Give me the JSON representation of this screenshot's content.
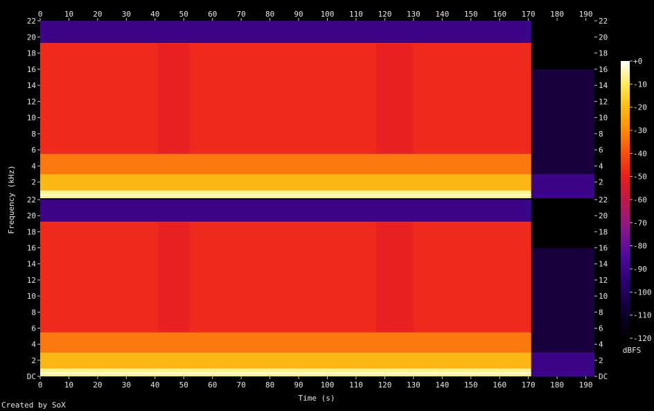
{
  "chart_data": {
    "type": "heatmap",
    "kind": "spectrogram",
    "channels": 2,
    "xlabel": "Time (s)",
    "ylabel": "Frequency (kHz)",
    "xlim": [
      0,
      193
    ],
    "x_ticks": [
      0,
      10,
      20,
      30,
      40,
      50,
      60,
      70,
      80,
      90,
      100,
      110,
      120,
      130,
      140,
      150,
      160,
      170,
      180,
      190
    ],
    "ylim": [
      0,
      22
    ],
    "y_ticks": [
      {
        "value": 0,
        "label": "DC"
      },
      {
        "value": 2,
        "label": "2"
      },
      {
        "value": 4,
        "label": "4"
      },
      {
        "value": 6,
        "label": "6"
      },
      {
        "value": 8,
        "label": "8"
      },
      {
        "value": 10,
        "label": "10"
      },
      {
        "value": 12,
        "label": "12"
      },
      {
        "value": 14,
        "label": "14"
      },
      {
        "value": 16,
        "label": "16"
      },
      {
        "value": 18,
        "label": "18"
      },
      {
        "value": 20,
        "label": "20"
      },
      {
        "value": 22,
        "label": "22"
      }
    ],
    "colorbar": {
      "label": "dBFS",
      "range": [
        -120,
        0
      ],
      "ticks": [
        {
          "value": 0,
          "label": "+0"
        },
        {
          "value": -10,
          "label": "-10"
        },
        {
          "value": -20,
          "label": "-20"
        },
        {
          "value": -30,
          "label": "-30"
        },
        {
          "value": -40,
          "label": "-40"
        },
        {
          "value": -50,
          "label": "-50"
        },
        {
          "value": -60,
          "label": "-60"
        },
        {
          "value": -70,
          "label": "-70"
        },
        {
          "value": -80,
          "label": "-80"
        },
        {
          "value": -90,
          "label": "-90"
        },
        {
          "value": -100,
          "label": "-100"
        },
        {
          "value": -110,
          "label": "-110"
        },
        {
          "value": -120,
          "label": "-120"
        }
      ]
    },
    "spectral_regions": [
      {
        "time": [
          0,
          171
        ],
        "freq_khz": [
          0,
          1
        ],
        "level_dbfs": -8
      },
      {
        "time": [
          0,
          171
        ],
        "freq_khz": [
          1,
          3
        ],
        "level_dbfs": -28
      },
      {
        "time": [
          0,
          171
        ],
        "freq_khz": [
          3,
          5.5
        ],
        "level_dbfs": -40
      },
      {
        "time": [
          0,
          171
        ],
        "freq_khz": [
          5.5,
          19.2
        ],
        "level_dbfs": -55
      },
      {
        "time": [
          0,
          171
        ],
        "freq_khz": [
          19.2,
          22
        ],
        "level_dbfs": -95
      },
      {
        "time": [
          171,
          193
        ],
        "freq_khz": [
          0,
          3
        ],
        "level_dbfs": -95
      },
      {
        "time": [
          171,
          193
        ],
        "freq_khz": [
          3,
          16
        ],
        "level_dbfs": -108
      },
      {
        "time": [
          171,
          193
        ],
        "freq_khz": [
          16,
          22
        ],
        "level_dbfs": -120
      }
    ],
    "quiet_segments_s": [
      [
        41,
        52
      ],
      [
        117,
        130
      ]
    ],
    "lowpass_cutoff_khz": 19.2,
    "fadeout_start_s": 171
  },
  "credit": "Created by SoX",
  "colors": {
    "background": "#000000",
    "text": "#e6e6e6",
    "palette": [
      "#000000",
      "#1a0044",
      "#4a0fa0",
      "#8a1f90",
      "#c81a3c",
      "#ec1e1e",
      "#fa5a10",
      "#fd9a0a",
      "#fcd81c",
      "#fdf3a0",
      "#ffffff"
    ]
  }
}
